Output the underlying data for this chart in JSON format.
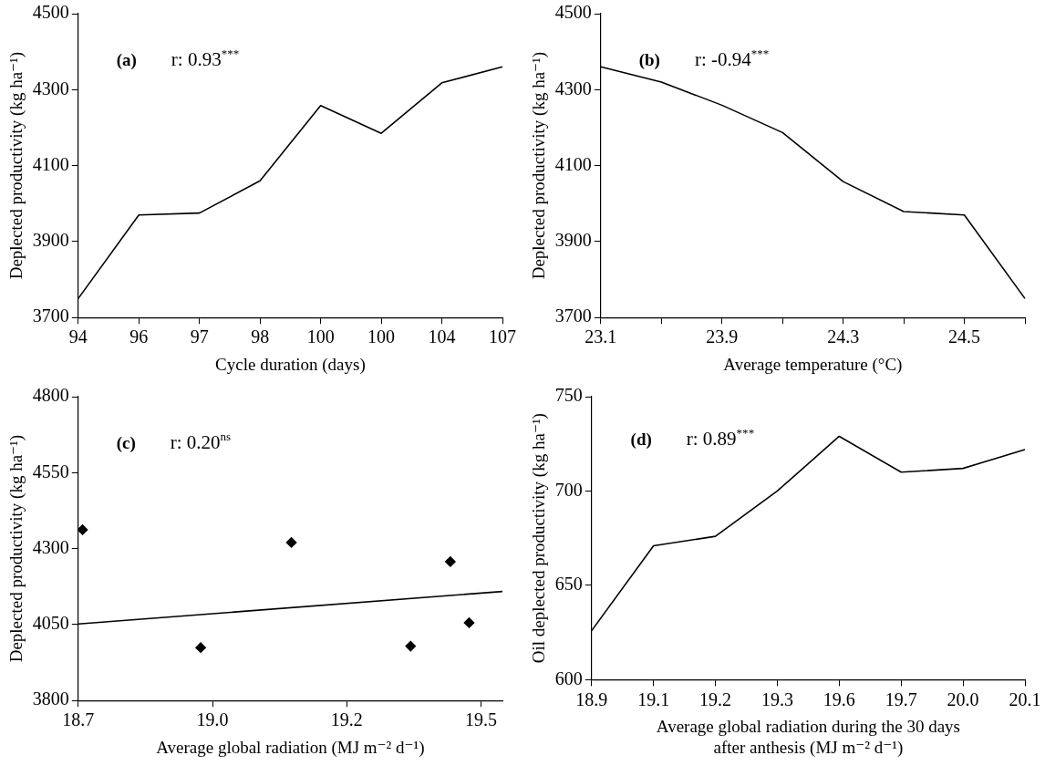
{
  "chart_data": [
    {
      "type": "line",
      "xlabel": "Cycle duration (days)",
      "ylabel": "Deplected productivity (kg ha⁻¹)",
      "annotations": [
        "(a)",
        "r: 0.93$^{***}$"
      ],
      "categories": [
        "94",
        "96",
        "97",
        "98",
        "100",
        "100",
        "104",
        "107"
      ],
      "series": [
        {
          "color": "#000000",
          "values": [
            3750,
            3970,
            3975,
            4060,
            4258,
            4185,
            4318,
            4360
          ]
        }
      ],
      "ylim": [
        3700,
        4500
      ],
      "yticks": [
        3700,
        3900,
        4100,
        4300,
        4500
      ],
      "grid": false,
      "legend": false,
      "marker": "none"
    },
    {
      "type": "line",
      "xlabel": "Average temperature (°C)",
      "ylabel": "Deplected productivity (kg ha⁻¹)",
      "annotations": [
        "(b)",
        "r: -0.94$^{***}$"
      ],
      "categories": [
        "23.1",
        null,
        "23.9",
        null,
        "24.3",
        null,
        "24.5",
        null
      ],
      "series": [
        {
          "color": "#000000",
          "values": [
            4360,
            4320,
            4259,
            4187,
            4058,
            3979,
            3970,
            3750
          ]
        }
      ],
      "ylim": [
        3700,
        4500
      ],
      "yticks": [
        3700,
        3900,
        4100,
        4300,
        4500
      ],
      "grid": false,
      "legend": false,
      "marker": "none"
    },
    {
      "type": "scatter",
      "xlabel": "Average global radiation (MJ m⁻² d⁻¹)",
      "ylabel": "Deplected productivity (kg ha⁻¹)",
      "annotations": [
        "(c)",
        "r: 0.20$^{ns}$"
      ],
      "series": [
        {
          "color": "#000000",
          "marker": "diamond",
          "x": [
            18.708,
            18.928,
            19.097,
            19.319,
            19.393,
            19.428
          ],
          "values": [
            4362,
            3974,
            4320,
            3979,
            4257,
            4056
          ]
        },
        {
          "type": "line",
          "color": "#000000",
          "marker": "none",
          "x": [
            18.7,
            19.49
          ],
          "values": [
            4052,
            4159
          ]
        }
      ],
      "xlim": [
        18.7,
        19.49
      ],
      "xticks": [
        18.7,
        {
          "value": 18.95,
          "label": "19.0"
        },
        19.2,
        {
          "value": 19.45,
          "label": "19.5"
        }
      ],
      "ylim": [
        3800,
        4800
      ],
      "yticks": [
        3800,
        4050,
        4300,
        4550,
        4800
      ],
      "grid": false,
      "legend": false
    },
    {
      "type": "line",
      "xlabel": "Average global radiation during the 30 days\nafter anthesis (MJ m⁻² d⁻¹)",
      "ylabel": "Oil deplected productivity (kg ha⁻¹)",
      "annotations": [
        "(d)",
        "r: 0.89$^{***}$"
      ],
      "categories": [
        "18.9",
        "19.1",
        "19.2",
        "19.3",
        "19.6",
        "19.7",
        "20.0",
        "20.1"
      ],
      "series": [
        {
          "color": "#000000",
          "values": [
            626,
            671,
            676,
            700,
            729,
            710,
            712,
            722
          ]
        }
      ],
      "ylim": [
        600,
        750
      ],
      "yticks": [
        600,
        650,
        700,
        750
      ],
      "grid": false,
      "legend": false,
      "marker": "none"
    }
  ]
}
